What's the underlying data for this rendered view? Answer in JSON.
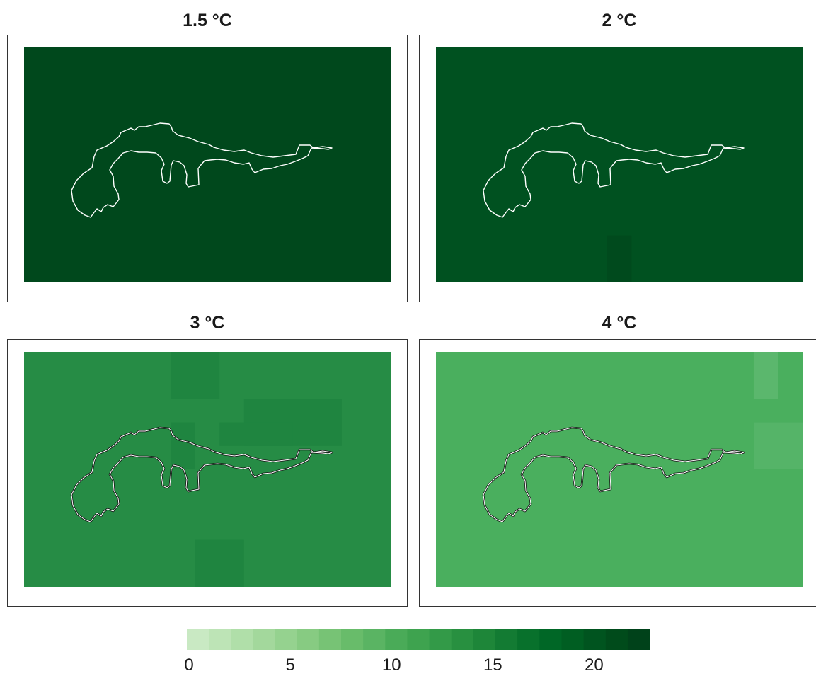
{
  "panels": [
    {
      "title": "1.5 °C",
      "base_color": "#00481c",
      "cells": [
        {
          "c": 16,
          "r": 0,
          "w": 1,
          "h": 1,
          "color": "#00481c"
        }
      ]
    },
    {
      "title": "2 °C",
      "base_color": "#005120",
      "cells": [
        {
          "c": 7,
          "r": 8,
          "w": 1,
          "h": 2,
          "color": "#004a1d"
        }
      ]
    },
    {
      "title": "3 °C",
      "base_color": "#268c45",
      "cells": [
        {
          "c": 6,
          "r": 0,
          "w": 2,
          "h": 2,
          "color": "#1f8540"
        },
        {
          "c": 9,
          "r": 2,
          "w": 4,
          "h": 2,
          "color": "#1f8540"
        },
        {
          "c": 6,
          "r": 3,
          "w": 1,
          "h": 2,
          "color": "#1f8540"
        },
        {
          "c": 8,
          "r": 3,
          "w": 3,
          "h": 1,
          "color": "#1f8540"
        },
        {
          "c": 7,
          "r": 8,
          "w": 2,
          "h": 2,
          "color": "#1f8540"
        }
      ]
    },
    {
      "title": "4 °C",
      "base_color": "#4aaf5e",
      "cells": [
        {
          "c": 13,
          "r": 0,
          "w": 1,
          "h": 2,
          "color": "#5bb76d"
        },
        {
          "c": 13,
          "r": 3,
          "w": 2,
          "h": 2,
          "color": "#55b468"
        }
      ]
    }
  ],
  "region_outline_color_dark": "#ffffff",
  "region_outline_color_light": "#111111",
  "colorbar": {
    "min": 0,
    "max": 22,
    "colors": [
      "#c9e9c3",
      "#bde4b6",
      "#b0dfa9",
      "#a3d89c",
      "#95d28f",
      "#87cb82",
      "#77c375",
      "#68bc6a",
      "#5ab463",
      "#4aab58",
      "#3ea34f",
      "#339a48",
      "#289040",
      "#1e8639",
      "#137b33",
      "#08712c",
      "#006726",
      "#005e22",
      "#00541f",
      "#004b1b",
      "#00421a"
    ],
    "ticks": [
      {
        "label": "0",
        "value": 0
      },
      {
        "label": "5",
        "value": 5
      },
      {
        "label": "10",
        "value": 10
      },
      {
        "label": "15",
        "value": 15
      },
      {
        "label": "20",
        "value": 20
      }
    ]
  }
}
